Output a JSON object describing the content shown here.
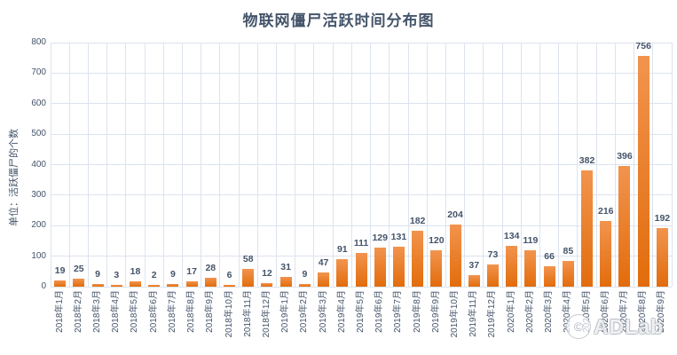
{
  "title": "物联网僵尸活跃时间分布图",
  "watermark": {
    "symbol": "©",
    "text": "ADLab"
  },
  "colors": {
    "text": "#44546A",
    "grid": "#DCE3EF",
    "bar_top": "#F2944E",
    "bar_bottom": "#E26C0C"
  },
  "chart_data": {
    "type": "bar",
    "title": "物联网僵尸活跃时间分布图",
    "xlabel": "",
    "ylabel": "单位：活跃僵尸的个数",
    "ylim": [
      0,
      800
    ],
    "ytick_step": 100,
    "grid": true,
    "legend": "none",
    "categories": [
      "2018年1月",
      "2018年2月",
      "2018年3月",
      "2018年4月",
      "2018年5月",
      "2018年6月",
      "2018年7月",
      "2018年8月",
      "2018年9月",
      "2018年10月",
      "2018年11月",
      "2018年12月",
      "2019年1月",
      "2019年2月",
      "2019年3月",
      "2019年4月",
      "2019年5月",
      "2019年6月",
      "2019年7月",
      "2019年8月",
      "2019年9月",
      "2019年10月",
      "2019年11月",
      "2019年12月",
      "2020年1月",
      "2020年2月",
      "2020年3月",
      "2020年4月",
      "2020年5月",
      "2020年6月",
      "2020年7月",
      "2020年8月",
      "2020年9月"
    ],
    "values": [
      19,
      25,
      9,
      3,
      18,
      2,
      9,
      17,
      28,
      6,
      58,
      12,
      31,
      9,
      47,
      91,
      111,
      129,
      131,
      182,
      120,
      204,
      37,
      73,
      134,
      119,
      66,
      85,
      382,
      216,
      396,
      756,
      192
    ]
  }
}
